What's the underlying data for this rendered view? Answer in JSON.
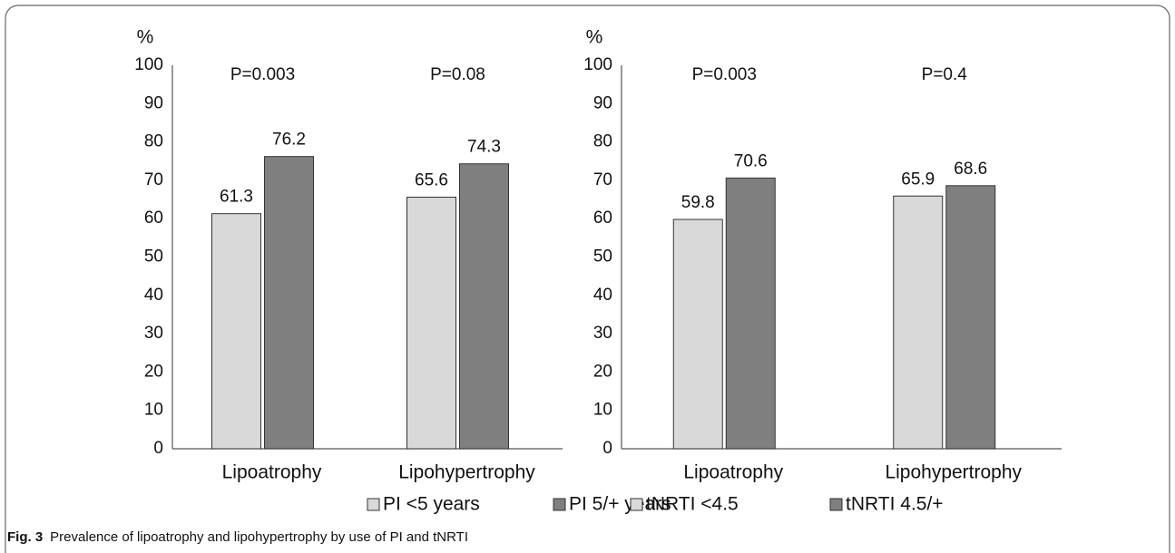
{
  "chart_data": [
    {
      "type": "bar",
      "y_label": "%",
      "categories": [
        "Lipoatrophy",
        "Lipohypertrophy"
      ],
      "annotations": [
        "P=0.003",
        "P=0.08"
      ],
      "series": [
        {
          "name": "PI <5 years",
          "color": "#d9d9d9",
          "values": [
            61.3,
            65.6
          ]
        },
        {
          "name": "PI 5/+ years",
          "color": "#7f7f7f",
          "values": [
            76.2,
            74.3
          ]
        }
      ],
      "ylim": [
        0,
        100
      ],
      "yticks": [
        0,
        10,
        20,
        30,
        40,
        50,
        60,
        70,
        80,
        90,
        100
      ],
      "grid": false
    },
    {
      "type": "bar",
      "y_label": "%",
      "categories": [
        "Lipoatrophy",
        "Lipohypertrophy"
      ],
      "annotations": [
        "P=0.003",
        "P=0.4"
      ],
      "series": [
        {
          "name": "tNRTI <4.5",
          "color": "#d9d9d9",
          "values": [
            59.8,
            65.9
          ]
        },
        {
          "name": "tNRTI 4.5/+",
          "color": "#7f7f7f",
          "values": [
            70.6,
            68.6
          ]
        }
      ],
      "ylim": [
        0,
        100
      ],
      "yticks": [
        0,
        10,
        20,
        30,
        40,
        50,
        60,
        70,
        80,
        90,
        100
      ],
      "grid": false
    }
  ],
  "caption": {
    "label": "Fig. 3",
    "text": "Prevalence of lipoatrophy and lipohypertrophy by use of PI and tNRTI"
  }
}
